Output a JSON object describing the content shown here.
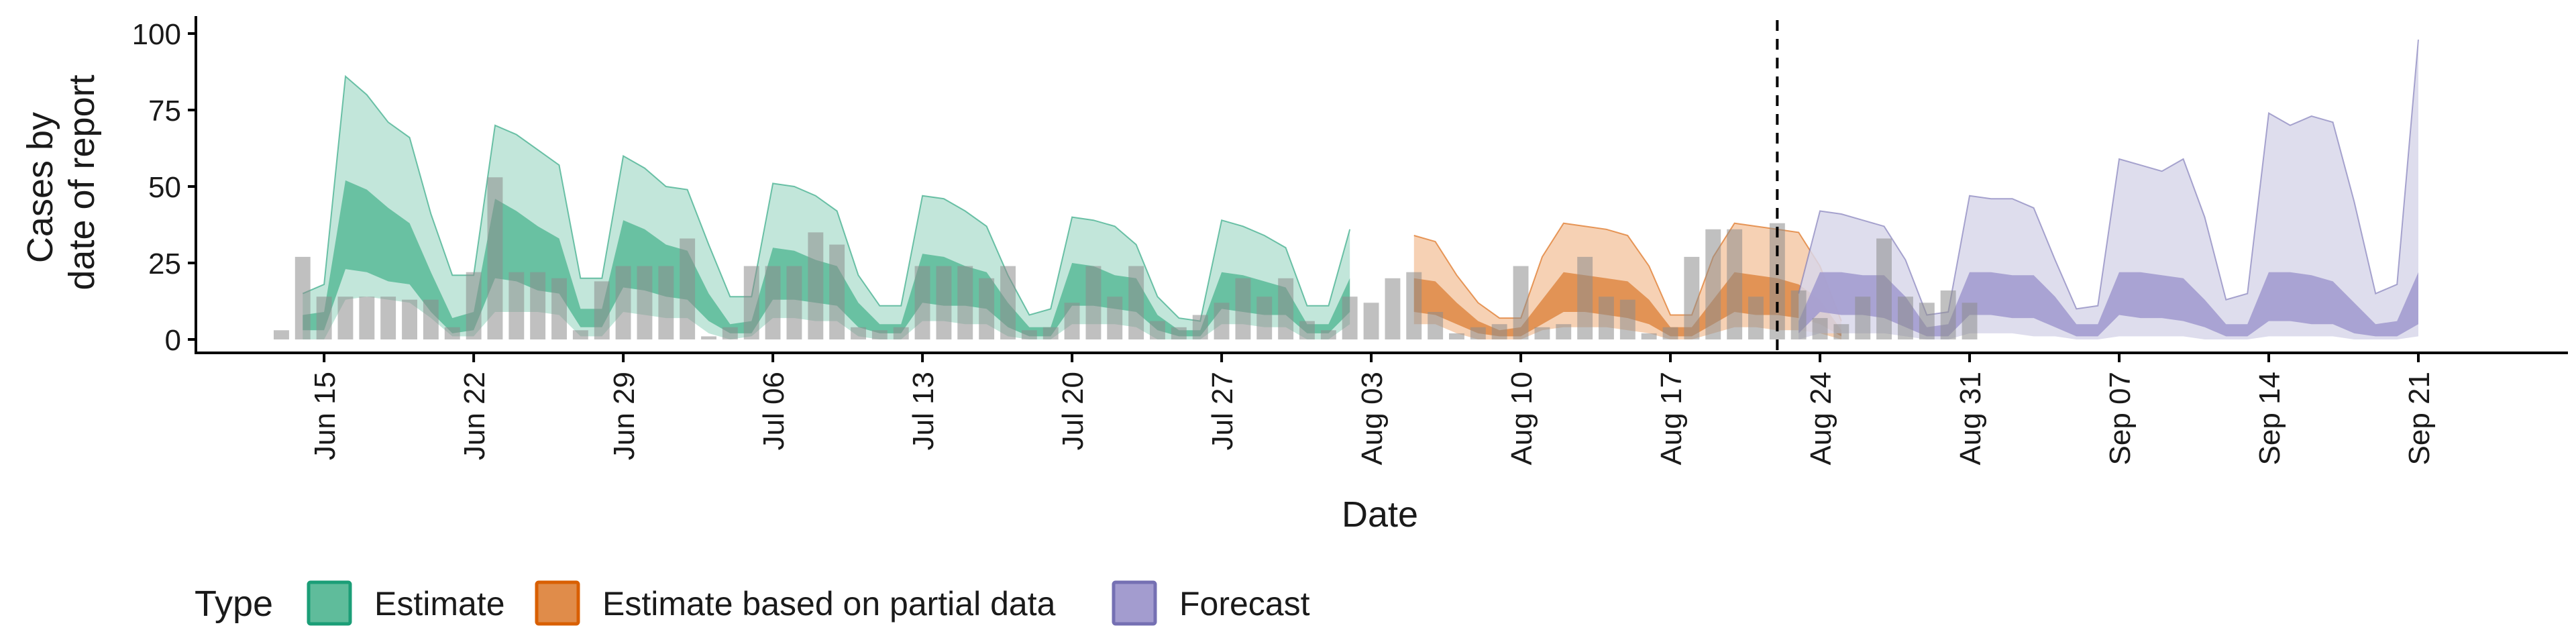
{
  "chart_data": {
    "type": "area",
    "xlabel": "Date",
    "ylabel_lines": [
      "Cases by",
      "date of report"
    ],
    "ylim": [
      0,
      100
    ],
    "yticks": [
      0,
      25,
      50,
      75,
      100
    ],
    "x_range": [
      "2024-06-09",
      "2024-09-28"
    ],
    "x_ticks": [
      {
        "date": "2024-06-15",
        "label": "Jun 15"
      },
      {
        "date": "2024-06-22",
        "label": "Jun 22"
      },
      {
        "date": "2024-06-29",
        "label": "Jun 29"
      },
      {
        "date": "2024-07-06",
        "label": "Jul 06"
      },
      {
        "date": "2024-07-13",
        "label": "Jul 13"
      },
      {
        "date": "2024-07-20",
        "label": "Jul 20"
      },
      {
        "date": "2024-07-27",
        "label": "Jul 27"
      },
      {
        "date": "2024-08-03",
        "label": "Aug 03"
      },
      {
        "date": "2024-08-10",
        "label": "Aug 10"
      },
      {
        "date": "2024-08-17",
        "label": "Aug 17"
      },
      {
        "date": "2024-08-24",
        "label": "Aug 24"
      },
      {
        "date": "2024-08-31",
        "label": "Aug 31"
      },
      {
        "date": "2024-09-07",
        "label": "Sep 07"
      },
      {
        "date": "2024-09-14",
        "label": "Sep 14"
      },
      {
        "date": "2024-09-21",
        "label": "Sep 21"
      }
    ],
    "forecast_line_date": "2024-08-22",
    "start_date": "2024-06-13",
    "reported_cases": [
      3,
      27,
      14,
      14,
      14,
      14,
      13,
      13,
      4,
      22,
      53,
      22,
      22,
      20,
      3,
      19,
      24,
      24,
      24,
      33,
      1,
      4,
      24,
      24,
      24,
      35,
      31,
      4,
      3,
      4,
      24,
      24,
      24,
      20,
      24,
      3,
      4,
      12,
      24,
      14,
      24,
      6,
      4,
      8,
      12,
      20,
      14,
      20,
      6,
      3,
      14,
      12,
      20,
      22,
      9,
      2,
      4,
      5,
      24,
      4,
      5,
      27,
      14,
      13,
      2,
      4,
      27,
      36,
      36,
      14,
      38,
      16,
      7,
      5,
      14,
      33,
      14,
      12,
      16,
      12
    ],
    "legend_title": "Type",
    "legend": [
      {
        "key": "estimate",
        "label": "Estimate"
      },
      {
        "key": "partial",
        "label": "Estimate based on partial data"
      },
      {
        "key": "forecast",
        "label": "Forecast"
      }
    ],
    "series": [
      {
        "key": "estimate",
        "start": "2024-06-14",
        "colors": {
          "outer": "#b7e2d4",
          "inner": "#5fbc9b",
          "stroke": "#1b9e77"
        },
        "outer_upper": [
          15,
          18,
          86,
          80,
          71,
          66,
          41,
          21,
          21,
          70,
          67,
          62,
          57,
          20,
          20,
          60,
          56,
          50,
          49,
          31,
          14,
          14,
          51,
          50,
          47,
          42,
          21,
          11,
          11,
          47,
          46,
          42,
          37,
          21,
          8,
          10,
          40,
          39,
          37,
          31,
          14,
          7,
          6,
          39,
          37,
          34,
          30,
          11,
          11,
          36
        ],
        "outer_lower": [
          0,
          0,
          13,
          14,
          13,
          12,
          7,
          1,
          1,
          9,
          9,
          9,
          8,
          1,
          1,
          9,
          8,
          7,
          7,
          2,
          0,
          1,
          7,
          7,
          6,
          6,
          1,
          0,
          0,
          6,
          6,
          5,
          5,
          1,
          0,
          0,
          5,
          5,
          5,
          4,
          0,
          0,
          0,
          5,
          5,
          4,
          4,
          0,
          0,
          5
        ],
        "inner_upper": [
          8,
          9,
          52,
          49,
          43,
          38,
          22,
          7,
          9,
          46,
          42,
          37,
          33,
          10,
          10,
          39,
          36,
          31,
          29,
          15,
          5,
          6,
          30,
          29,
          26,
          24,
          12,
          5,
          5,
          28,
          27,
          24,
          22,
          12,
          4,
          4,
          25,
          24,
          21,
          20,
          8,
          3,
          3,
          22,
          21,
          19,
          17,
          5,
          5,
          20
        ],
        "inner_lower": [
          3,
          3,
          23,
          22,
          19,
          18,
          9,
          2,
          3,
          20,
          19,
          16,
          15,
          4,
          4,
          17,
          16,
          14,
          13,
          6,
          2,
          2,
          13,
          13,
          12,
          11,
          4,
          2,
          2,
          12,
          11,
          11,
          10,
          4,
          1,
          1,
          11,
          11,
          10,
          9,
          3,
          1,
          1,
          10,
          9,
          8,
          8,
          2,
          2,
          9
        ]
      },
      {
        "key": "partial",
        "start": "2024-08-05",
        "colors": {
          "outer": "#f4c9a7",
          "inner": "#e08c4a",
          "stroke": "#d95f02"
        },
        "outer_upper": [
          34,
          32,
          21,
          12,
          7,
          7,
          27,
          38,
          37,
          36,
          34,
          24,
          8,
          8,
          27,
          38,
          37,
          36,
          35,
          24,
          6
        ],
        "outer_lower": [
          5,
          5,
          2,
          0,
          0,
          0,
          3,
          4,
          4,
          4,
          3,
          2,
          0,
          0,
          2,
          4,
          4,
          3,
          3,
          2,
          0
        ],
        "inner_upper": [
          20,
          19,
          12,
          6,
          3,
          4,
          13,
          22,
          21,
          20,
          19,
          13,
          4,
          4,
          13,
          22,
          21,
          20,
          18,
          13,
          3
        ],
        "inner_lower": [
          9,
          8,
          5,
          2,
          1,
          1,
          5,
          9,
          9,
          8,
          7,
          5,
          1,
          1,
          5,
          9,
          8,
          8,
          7,
          5,
          1
        ]
      },
      {
        "key": "forecast",
        "start": "2024-08-23",
        "colors": {
          "outer": "#d8d7ea",
          "inner": "#a39ccf",
          "stroke": "#7570b3"
        },
        "outer_upper": [
          15,
          42,
          41,
          39,
          37,
          26,
          8,
          9,
          47,
          46,
          46,
          43,
          26,
          10,
          11,
          59,
          57,
          55,
          59,
          40,
          13,
          15,
          74,
          70,
          73,
          71,
          45,
          15,
          18,
          98
        ],
        "outer_lower": [
          0,
          2,
          2,
          2,
          2,
          1,
          0,
          0,
          2,
          2,
          2,
          1,
          1,
          0,
          0,
          1,
          1,
          1,
          1,
          0,
          0,
          0,
          1,
          1,
          1,
          1,
          0,
          0,
          0,
          1
        ],
        "inner_upper": [
          6,
          22,
          22,
          21,
          21,
          14,
          4,
          5,
          22,
          22,
          21,
          21,
          14,
          5,
          5,
          22,
          22,
          21,
          20,
          13,
          5,
          5,
          22,
          22,
          21,
          19,
          12,
          5,
          6,
          22
        ],
        "inner_lower": [
          2,
          9,
          8,
          8,
          7,
          4,
          1,
          1,
          8,
          8,
          7,
          7,
          4,
          1,
          1,
          8,
          7,
          7,
          6,
          4,
          1,
          1,
          6,
          6,
          5,
          5,
          2,
          1,
          1,
          5
        ]
      }
    ]
  }
}
